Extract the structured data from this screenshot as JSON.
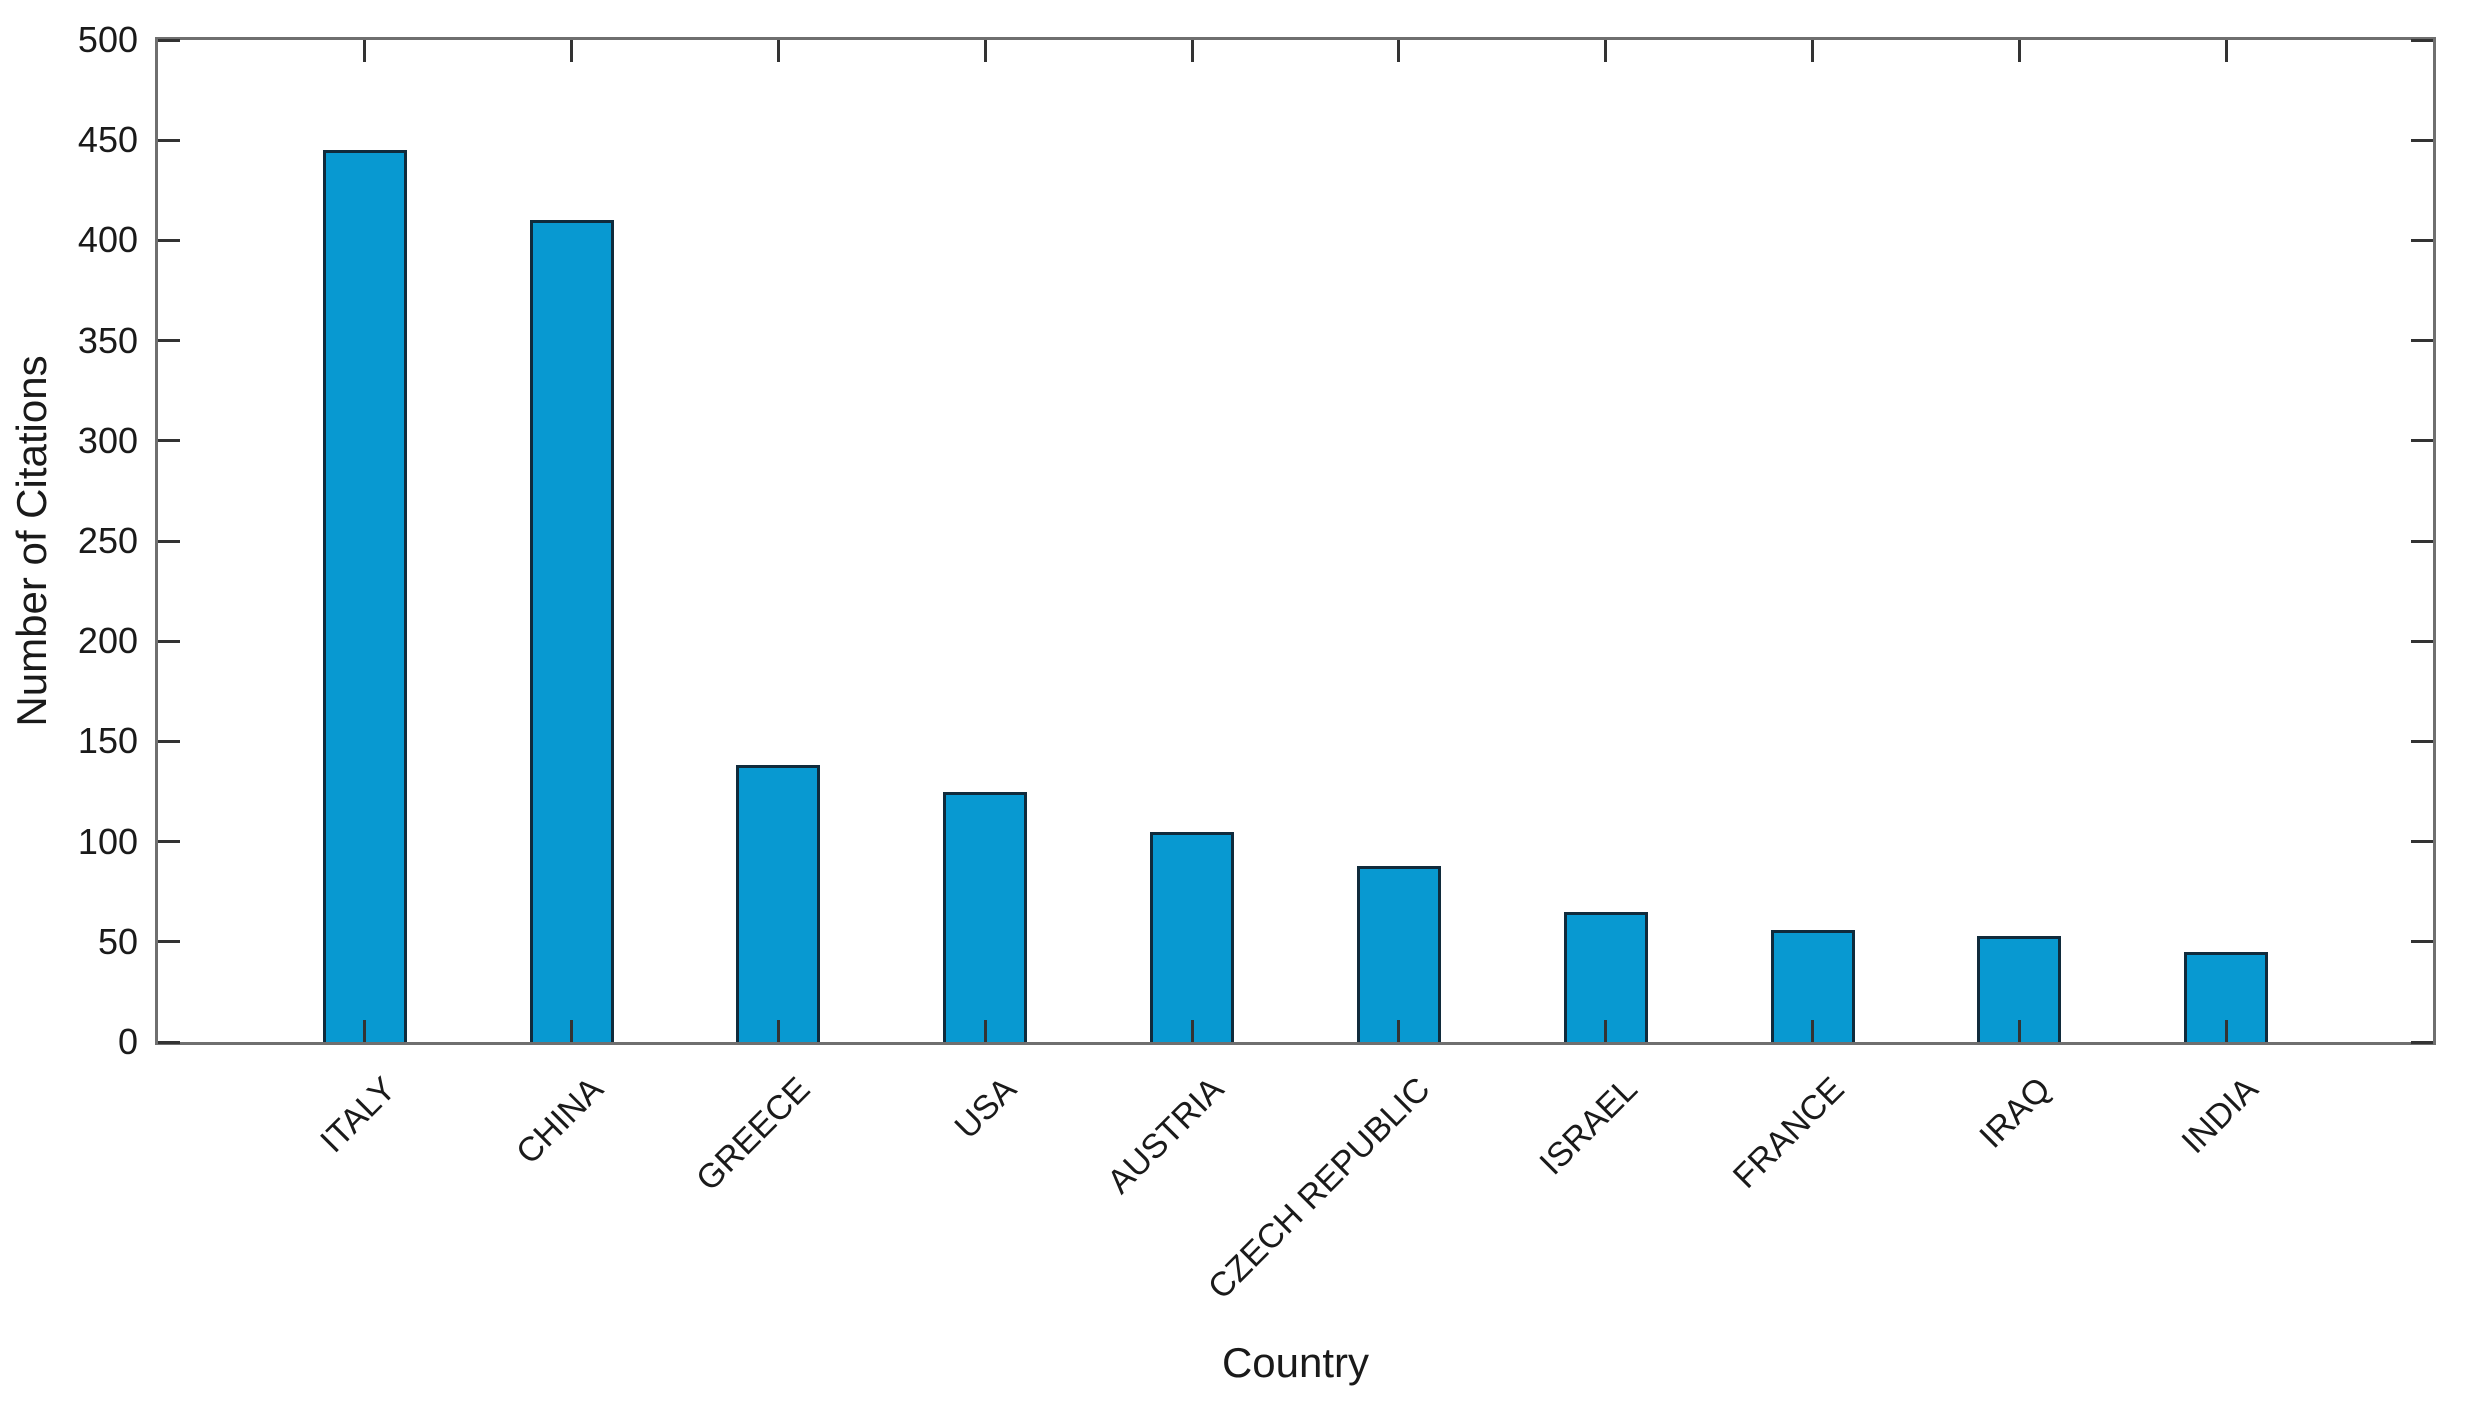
{
  "chart_data": {
    "type": "bar",
    "title": "",
    "categories": [
      "ITALY",
      "CHINA",
      "GREECE",
      "USA",
      "AUSTRIA",
      "CZECH REPUBLIC",
      "ISRAEL",
      "FRANCE",
      "IRAQ",
      "INDIA"
    ],
    "values": [
      445,
      410,
      138,
      125,
      105,
      88,
      65,
      56,
      53,
      45
    ],
    "xlabel": "Country",
    "ylabel": "Number of Citations",
    "ylim": [
      0,
      500
    ],
    "yticks": [
      0,
      50,
      100,
      150,
      200,
      250,
      300,
      350,
      400,
      450,
      500
    ],
    "x_label_rotation_deg": 45,
    "grid": false,
    "legend": null,
    "box": true,
    "tick_direction": "in",
    "colors": {
      "bar_fill": "#0899d1",
      "bar_edge": "#102b3c",
      "axis_box": "#6f6f6f",
      "tick_mark": "#333333",
      "text": "#1a1a1a"
    }
  }
}
